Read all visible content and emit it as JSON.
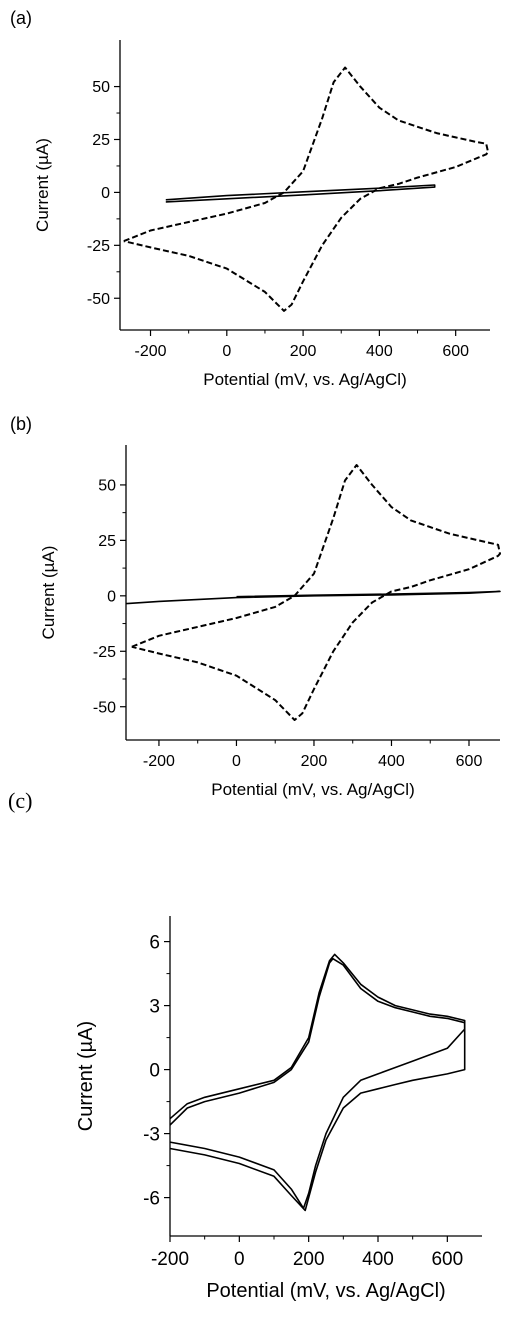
{
  "panels": [
    "(a)",
    "(b)",
    "(c)"
  ],
  "chart_data": [
    {
      "type": "line",
      "label": "(a)",
      "xlabel": "Potential (mV, vs. Ag/AgCl)",
      "ylabel": "Current (µA)",
      "xlim": [
        -280,
        690
      ],
      "ylim": [
        -65,
        72
      ],
      "xticks": [
        -200,
        0,
        200,
        400,
        600
      ],
      "yticks": [
        -50,
        -25,
        0,
        25,
        50
      ],
      "series": [
        {
          "style": "dashed",
          "x": [
            -270,
            -200,
            -100,
            0,
            100,
            150,
            200,
            250,
            280,
            310,
            350,
            400,
            450,
            500,
            550,
            600,
            650,
            680,
            685,
            680,
            600,
            500,
            450,
            400,
            350,
            300,
            250,
            200,
            170,
            150,
            100,
            0,
            -100,
            -200,
            -270
          ],
          "y": [
            -23,
            -18,
            -14,
            -10,
            -5,
            0,
            10,
            35,
            52,
            59,
            50,
            40,
            34,
            31,
            28,
            26,
            24,
            23,
            19,
            18,
            12,
            7,
            4,
            2,
            -3,
            -12,
            -25,
            -42,
            -53,
            -56,
            -47,
            -36,
            -30,
            -26,
            -23
          ]
        },
        {
          "style": "solid",
          "x": [
            -160,
            0,
            200,
            400,
            545,
            545,
            400,
            200,
            0,
            -160
          ],
          "y": [
            -4.5,
            -3,
            -1.2,
            0.8,
            2.5,
            3.5,
            2,
            0.3,
            -1.5,
            -3.5
          ]
        }
      ]
    },
    {
      "type": "line",
      "label": "(b)",
      "xlabel": "Potential (mV, vs. Ag/AgCl)",
      "ylabel": "Current (µA)",
      "xlim": [
        -285,
        680
      ],
      "ylim": [
        -65,
        68
      ],
      "xticks": [
        -200,
        0,
        200,
        400,
        600
      ],
      "yticks": [
        -50,
        -25,
        0,
        25,
        50
      ],
      "series": [
        {
          "style": "dashed",
          "x": [
            -270,
            -200,
            -100,
            0,
            100,
            150,
            200,
            250,
            280,
            310,
            350,
            400,
            450,
            500,
            550,
            600,
            650,
            675,
            680,
            675,
            600,
            500,
            450,
            400,
            350,
            300,
            250,
            200,
            170,
            150,
            100,
            0,
            -100,
            -200,
            -270
          ],
          "y": [
            -23,
            -18,
            -14,
            -10,
            -5,
            0,
            10,
            35,
            52,
            59,
            50,
            40,
            34,
            31,
            28,
            26,
            24,
            23,
            19,
            18,
            12,
            7,
            4,
            2,
            -3,
            -12,
            -25,
            -42,
            -53,
            -56,
            -47,
            -36,
            -30,
            -26,
            -23
          ]
        },
        {
          "style": "solid",
          "x": [
            -285,
            -200,
            0,
            200,
            400,
            600,
            680,
            600,
            400,
            200,
            0
          ],
          "y": [
            -3.5,
            -2.5,
            -0.8,
            0,
            0.4,
            1.2,
            2,
            1.5,
            0.8,
            0.3,
            -0.4
          ]
        }
      ]
    },
    {
      "type": "line",
      "label": "(c)",
      "xlabel": "Potential (mV, vs. Ag/AgCl)",
      "ylabel": "Current (µA)",
      "xlim": [
        -200,
        700
      ],
      "ylim": [
        -7.8,
        7.2
      ],
      "xticks": [
        -200,
        0,
        200,
        400,
        600
      ],
      "yticks": [
        -6,
        -3,
        0,
        3,
        6
      ],
      "series": [
        {
          "style": "solid",
          "x": [
            -200,
            -150,
            -100,
            0,
            100,
            150,
            200,
            230,
            260,
            275,
            300,
            350,
            400,
            450,
            500,
            550,
            600,
            650,
            650,
            600,
            500,
            450,
            400,
            350,
            300,
            250,
            220,
            200,
            185,
            150,
            100,
            0,
            -100,
            -200
          ],
          "y": [
            -2.3,
            -1.6,
            -1.3,
            -0.9,
            -0.5,
            0.1,
            1.5,
            3.6,
            5.1,
            5.4,
            5.0,
            4.0,
            3.4,
            3.0,
            2.8,
            2.6,
            2.5,
            2.3,
            1.9,
            1.0,
            0.4,
            0.1,
            -0.2,
            -0.5,
            -1.3,
            -3.0,
            -4.5,
            -5.8,
            -6.5,
            -5.6,
            -4.7,
            -4.1,
            -3.7,
            -3.4
          ]
        },
        {
          "style": "solid",
          "x": [
            -200,
            -150,
            -100,
            0,
            100,
            150,
            200,
            230,
            260,
            270,
            300,
            350,
            400,
            450,
            500,
            550,
            600,
            650,
            650,
            600,
            500,
            450,
            400,
            350,
            300,
            250,
            220,
            200,
            190,
            150,
            100,
            0,
            -100,
            -200
          ],
          "y": [
            -2.6,
            -1.8,
            -1.5,
            -1.1,
            -0.6,
            0.0,
            1.3,
            3.4,
            5.0,
            5.2,
            4.9,
            3.8,
            3.2,
            2.9,
            2.7,
            2.5,
            2.4,
            2.2,
            0.0,
            -0.2,
            -0.5,
            -0.7,
            -0.9,
            -1.1,
            -1.8,
            -3.3,
            -4.8,
            -6.0,
            -6.6,
            -5.9,
            -5.0,
            -4.4,
            -4.0,
            -3.7
          ]
        }
      ]
    }
  ]
}
